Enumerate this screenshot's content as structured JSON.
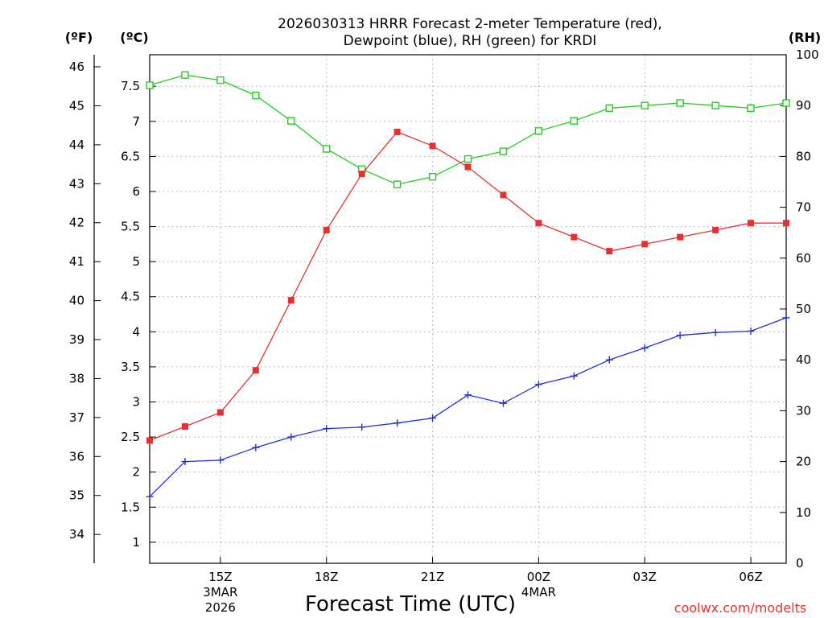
{
  "chart_data": {
    "type": "line",
    "title_line1": "2026030313 HRRR Forecast 2-meter Temperature (red),",
    "title_line2": "Dewpoint (blue), RH (green) for KRDI",
    "xlabel": "Forecast Time (UTC)",
    "credit": "coolwx.com/modelts",
    "units": {
      "fahrenheit": "(ºF)",
      "celsius": "(ºC)",
      "rh": "(RH)"
    },
    "hours": [
      13,
      14,
      15,
      16,
      17,
      18,
      19,
      20,
      21,
      22,
      23,
      24,
      25,
      26,
      27,
      28,
      29,
      30,
      31
    ],
    "x_ticks": [
      {
        "hour": 15,
        "label": "15Z",
        "sub1": "3MAR",
        "sub2": "2026"
      },
      {
        "hour": 18,
        "label": "18Z",
        "sub1": "",
        "sub2": ""
      },
      {
        "hour": 21,
        "label": "21Z",
        "sub1": "",
        "sub2": ""
      },
      {
        "hour": 24,
        "label": "00Z",
        "sub1": "4MAR",
        "sub2": ""
      },
      {
        "hour": 27,
        "label": "03Z",
        "sub1": "",
        "sub2": ""
      },
      {
        "hour": 30,
        "label": "06Z",
        "sub1": "",
        "sub2": ""
      }
    ],
    "ylim_c": [
      0.7,
      7.95
    ],
    "ylim_rh": [
      0,
      100
    ],
    "ylim_f": [
      33.26,
      46.31
    ],
    "celsius_ticks": [
      "1",
      "1.5",
      "2",
      "2.5",
      "3",
      "3.5",
      "4",
      "4.5",
      "5",
      "5.5",
      "6",
      "6.5",
      "7",
      "7.5"
    ],
    "fahrenheit_ticks": [
      "34",
      "35",
      "36",
      "37",
      "38",
      "39",
      "40",
      "41",
      "42",
      "43",
      "44",
      "45",
      "46"
    ],
    "rh_ticks": [
      "0",
      "10",
      "20",
      "30",
      "40",
      "50",
      "60",
      "70",
      "80",
      "90",
      "100"
    ],
    "series": [
      {
        "name": "Temperature",
        "unit": "C",
        "color": "#e83030",
        "marker": "filled-square",
        "values": [
          2.45,
          2.65,
          2.85,
          3.45,
          4.45,
          5.45,
          6.25,
          6.85,
          6.65,
          6.35,
          5.95,
          5.55,
          5.35,
          5.15,
          5.25,
          5.35,
          5.45,
          5.55,
          5.55
        ]
      },
      {
        "name": "Dewpoint",
        "unit": "C",
        "color": "#2030e0",
        "marker": "plus",
        "values": [
          1.65,
          2.15,
          2.17,
          2.35,
          2.5,
          2.62,
          2.64,
          2.7,
          2.77,
          3.1,
          2.98,
          3.25,
          3.37,
          3.6,
          3.77,
          3.95,
          3.99,
          4.01,
          4.2
        ]
      },
      {
        "name": "RH",
        "unit": "%",
        "color": "#20d020",
        "marker": "open-square",
        "values": [
          94,
          96,
          95,
          92,
          87,
          81.5,
          77.5,
          74.5,
          76,
          79.5,
          81,
          85,
          87,
          89.5,
          90,
          90.5,
          90,
          89.5,
          90.5
        ]
      }
    ]
  }
}
